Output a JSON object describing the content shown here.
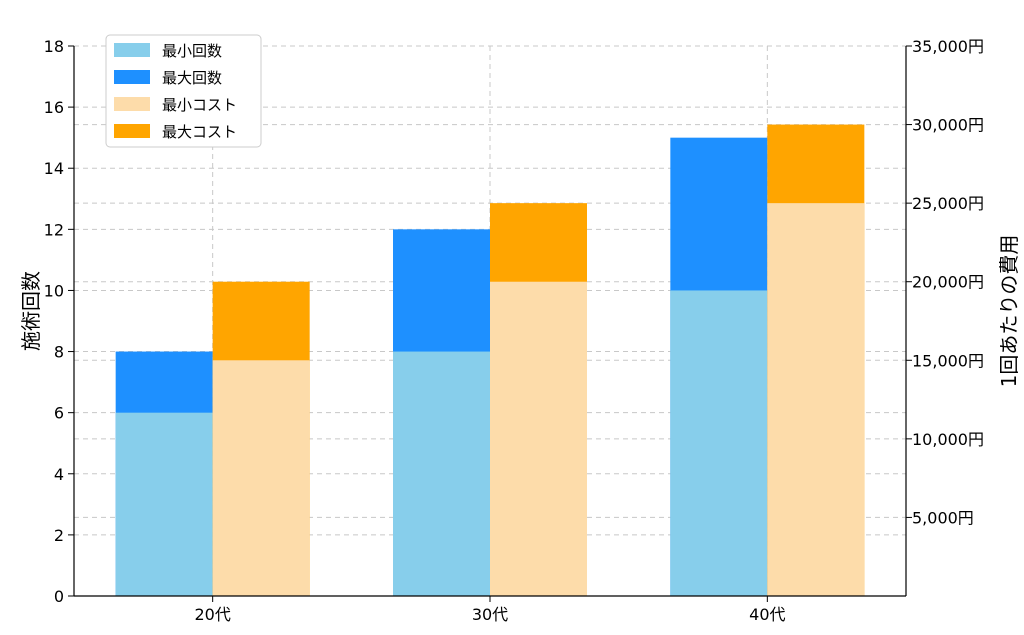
{
  "chart_data": {
    "type": "bar",
    "title": "",
    "categories": [
      "20代",
      "30代",
      "40代"
    ],
    "left_axis": {
      "label": "施術回数",
      "ylim": [
        0,
        18
      ],
      "ticks": [
        "0",
        "2",
        "4",
        "6",
        "8",
        "10",
        "12",
        "14",
        "16",
        "18"
      ]
    },
    "right_axis": {
      "label": "1回あたりの費用",
      "ylim": [
        0,
        35000
      ],
      "ticks": [
        "5,000円",
        "10,000円",
        "15,000円",
        "20,000円",
        "25,000円",
        "30,000円",
        "35,000円"
      ]
    },
    "series": [
      {
        "name": "最小回数",
        "axis": "left",
        "color": "#87ceeb",
        "values": [
          6,
          8,
          10
        ]
      },
      {
        "name": "最大回数",
        "axis": "left",
        "color": "#1e90ff",
        "values": [
          8,
          12,
          15
        ]
      },
      {
        "name": "最小コスト",
        "axis": "right",
        "color": "#fddcaa",
        "values": [
          15000,
          20000,
          25000
        ]
      },
      {
        "name": "最大コスト",
        "axis": "right",
        "color": "#ffa500",
        "values": [
          20000,
          25000,
          30000
        ]
      }
    ],
    "legend": "top-left",
    "grid": true
  }
}
